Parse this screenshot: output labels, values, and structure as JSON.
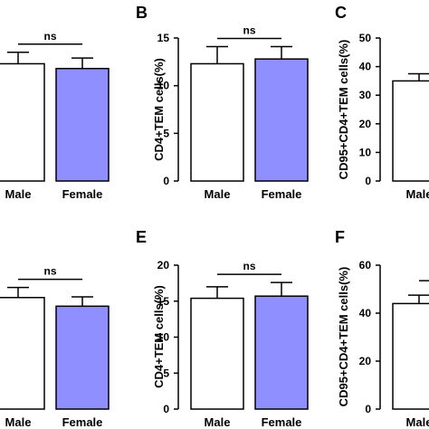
{
  "colors": {
    "male": "#ffffff",
    "female": "#8f8fff",
    "stroke": "#000000"
  },
  "chart_data": [
    {
      "type": "bar",
      "panel": "",
      "ylabel": "",
      "categories": [
        "Male",
        "Female"
      ],
      "values": [
        12.3,
        11.8
      ],
      "errors": [
        1.2,
        1.1
      ],
      "ylim": [
        0,
        15
      ],
      "yticks": [],
      "significance": "ns",
      "grid": false
    },
    {
      "type": "bar",
      "panel": "B",
      "ylabel": "CD4+TEM cells(%)",
      "categories": [
        "Male",
        "Female"
      ],
      "values": [
        12.3,
        12.8
      ],
      "errors": [
        1.8,
        1.3
      ],
      "ylim": [
        0,
        15
      ],
      "yticks": [
        "0",
        "5",
        "10",
        "15"
      ],
      "significance": "ns",
      "grid": false
    },
    {
      "type": "bar",
      "panel": "C",
      "ylabel": "CD95+CD4+TEM cells(%)",
      "categories": [
        "Male"
      ],
      "values": [
        35
      ],
      "errors": [
        2.5
      ],
      "ylim": [
        0,
        50
      ],
      "yticks": [
        "0",
        "10",
        "20",
        "30",
        "40",
        "50"
      ],
      "significance": "",
      "grid": false
    },
    {
      "type": "bar",
      "panel": "",
      "ylabel": "",
      "categories": [
        "Male",
        "Female"
      ],
      "values": [
        15.5,
        14.3
      ],
      "errors": [
        1.4,
        1.3
      ],
      "ylim": [
        0,
        20
      ],
      "yticks": [],
      "significance": "ns",
      "grid": false
    },
    {
      "type": "bar",
      "panel": "E",
      "ylabel": "CD4+TEM cells(%)",
      "categories": [
        "Male",
        "Female"
      ],
      "values": [
        15.4,
        15.7
      ],
      "errors": [
        1.6,
        1.9
      ],
      "ylim": [
        0,
        20
      ],
      "yticks": [
        "0",
        "5",
        "10",
        "15",
        "20"
      ],
      "significance": "ns",
      "grid": false
    },
    {
      "type": "bar",
      "panel": "F",
      "ylabel": "CD95+CD4+TEM cells(%)",
      "categories": [
        "Male"
      ],
      "values": [
        44
      ],
      "errors": [
        3.5
      ],
      "ylim": [
        0,
        60
      ],
      "yticks": [
        "0",
        "20",
        "40",
        "60"
      ],
      "significance": "",
      "grid": false
    }
  ]
}
